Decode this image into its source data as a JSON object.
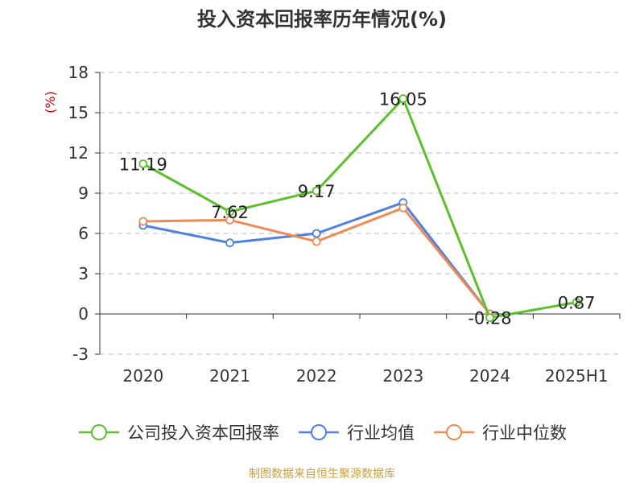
{
  "chart_data": {
    "type": "line",
    "title": "投入资本回报率历年情况(%)",
    "ylabel": "(%)",
    "categories": [
      "2020",
      "2021",
      "2022",
      "2023",
      "2024",
      "2025H1"
    ],
    "ylim": [
      -3,
      18
    ],
    "yticks": [
      -3,
      0,
      3,
      6,
      9,
      12,
      15,
      18
    ],
    "grid": true,
    "legend_position": "bottom",
    "series": [
      {
        "name": "公司投入资本回报率",
        "color": "#5cc02c",
        "values": [
          11.19,
          7.62,
          9.17,
          16.05,
          -0.28,
          0.87
        ],
        "labels": [
          "11.19",
          "7.62",
          "9.17",
          "16.05",
          "-0.28",
          "0.87"
        ]
      },
      {
        "name": "行业均值",
        "color": "#4f7fdf",
        "values": [
          6.6,
          5.3,
          6.0,
          8.3,
          0.0,
          null
        ]
      },
      {
        "name": "行业中位数",
        "color": "#f08a55",
        "values": [
          6.9,
          7.0,
          5.4,
          7.9,
          0.0,
          null
        ]
      }
    ]
  },
  "source_text": "制图数据来自恒生聚源数据库",
  "colors": {
    "axis": "#333333",
    "grid": "#bbbbbb",
    "ylabel": "#cc0000",
    "source": "#c8a040"
  }
}
